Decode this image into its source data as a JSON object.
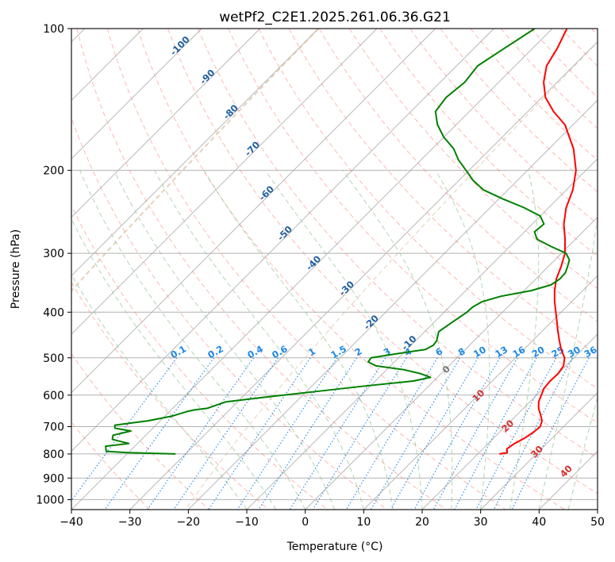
{
  "chart_data": {
    "type": "skew-t",
    "title": "wetPf2_C2E1.2025.261.06.36.G21",
    "xlabel": "Temperature (°C)",
    "ylabel": "Pressure (hPa)",
    "xlim": [
      -40,
      50
    ],
    "ylim": [
      1050,
      100
    ],
    "y_scale": "log",
    "grid": true,
    "x_ticks": [
      -40,
      -30,
      -20,
      -10,
      0,
      10,
      20,
      30,
      40,
      50
    ],
    "x_tick_labels": [
      "−40",
      "−30",
      "−20",
      "−10",
      "0",
      "10",
      "20",
      "30",
      "40",
      "50"
    ],
    "y_ticks": [
      100,
      200,
      300,
      400,
      500,
      600,
      700,
      800,
      900,
      1000
    ],
    "y_tick_labels": [
      "100",
      "200",
      "300",
      "400",
      "500",
      "600",
      "700",
      "800",
      "900",
      "1000"
    ],
    "series": [
      {
        "color": "#ff0000",
        "points": [
          [
            800,
            23.7
          ],
          [
            795,
            24.8
          ],
          [
            780,
            24.1
          ],
          [
            760,
            24.5
          ],
          [
            740,
            25.3
          ],
          [
            720,
            25.8
          ],
          [
            700,
            26.0
          ],
          [
            680,
            25.3
          ],
          [
            660,
            24.0
          ],
          [
            640,
            22.6
          ],
          [
            620,
            21.5
          ],
          [
            600,
            20.8
          ],
          [
            580,
            20.1
          ],
          [
            560,
            19.9
          ],
          [
            540,
            20.0
          ],
          [
            520,
            19.6
          ],
          [
            500,
            18.4
          ],
          [
            480,
            16.4
          ],
          [
            460,
            14.6
          ],
          [
            440,
            12.8
          ],
          [
            420,
            11.0
          ],
          [
            400,
            9.1
          ],
          [
            380,
            7.1
          ],
          [
            360,
            5.2
          ],
          [
            340,
            3.5
          ],
          [
            320,
            2.2
          ],
          [
            300,
            0.6
          ],
          [
            280,
            -1.8
          ],
          [
            260,
            -4.6
          ],
          [
            240,
            -7.0
          ],
          [
            220,
            -8.9
          ],
          [
            200,
            -11.7
          ],
          [
            180,
            -15.8
          ],
          [
            160,
            -21.4
          ],
          [
            150,
            -25.6
          ],
          [
            140,
            -29.4
          ],
          [
            130,
            -32.3
          ],
          [
            120,
            -34.6
          ],
          [
            110,
            -35.8
          ],
          [
            100,
            -37.5
          ]
        ]
      },
      {
        "color": "#008000",
        "points": [
          [
            800,
            -31.7
          ],
          [
            795,
            -40.0
          ],
          [
            790,
            -44.0
          ],
          [
            780,
            -44.5
          ],
          [
            770,
            -45.0
          ],
          [
            760,
            -41.5
          ],
          [
            745,
            -45.0
          ],
          [
            730,
            -45.6
          ],
          [
            715,
            -43.3
          ],
          [
            705,
            -46.5
          ],
          [
            695,
            -47.0
          ],
          [
            680,
            -42.0
          ],
          [
            665,
            -38.8
          ],
          [
            650,
            -37.0
          ],
          [
            645,
            -36.0
          ],
          [
            640,
            -34.1
          ],
          [
            620,
            -32.0
          ],
          [
            605,
            -25.6
          ],
          [
            590,
            -18.6
          ],
          [
            575,
            -11.5
          ],
          [
            560,
            -3.5
          ],
          [
            550,
            -1.2
          ],
          [
            540,
            -3.6
          ],
          [
            530,
            -7.0
          ],
          [
            520,
            -12.5
          ],
          [
            510,
            -14.5
          ],
          [
            500,
            -14.7
          ],
          [
            490,
            -11.0
          ],
          [
            480,
            -6.8
          ],
          [
            470,
            -6.2
          ],
          [
            460,
            -6.4
          ],
          [
            440,
            -7.6
          ],
          [
            420,
            -6.9
          ],
          [
            400,
            -6.1
          ],
          [
            390,
            -6.0
          ],
          [
            380,
            -5.3
          ],
          [
            370,
            -3.0
          ],
          [
            360,
            1.2
          ],
          [
            350,
            3.6
          ],
          [
            340,
            4.1
          ],
          [
            330,
            4.0
          ],
          [
            320,
            3.3
          ],
          [
            310,
            2.5
          ],
          [
            300,
            0.8
          ],
          [
            290,
            -3.0
          ],
          [
            280,
            -6.6
          ],
          [
            270,
            -8.3
          ],
          [
            260,
            -8.0
          ],
          [
            250,
            -10.0
          ],
          [
            240,
            -14.2
          ],
          [
            230,
            -19.3
          ],
          [
            220,
            -24.2
          ],
          [
            210,
            -27.6
          ],
          [
            200,
            -30.5
          ],
          [
            190,
            -33.6
          ],
          [
            180,
            -36.3
          ],
          [
            170,
            -40.0
          ],
          [
            160,
            -43.2
          ],
          [
            150,
            -45.8
          ],
          [
            140,
            -46.4
          ],
          [
            130,
            -45.8
          ],
          [
            120,
            -46.4
          ],
          [
            110,
            -44.8
          ],
          [
            100,
            -43.0
          ]
        ]
      }
    ],
    "annotations": {
      "dry_adiabat_labels": [
        "-100",
        "-90",
        "-80",
        "-70",
        "-60",
        "-50",
        "-40",
        "-30",
        "-20",
        "-10"
      ],
      "moist_adiabat_labels": [
        "0",
        "10",
        "20",
        "30",
        "40"
      ],
      "mixing_ratio_labels": [
        "0.1",
        "0.2",
        "0.4",
        "0.6",
        "1",
        "1.5",
        "2",
        "3",
        "4",
        "6",
        "8",
        "10",
        "13",
        "16",
        "20",
        "25",
        "30",
        "36"
      ]
    },
    "colors": {
      "temperature": "#ff0000",
      "dewpoint": "#008000",
      "dry_adiabat": "#fa8072",
      "moist_adiabat": "#90c490",
      "mixing_ratio": "#1e88e5",
      "dry_adiabat_label": "#1f5f9f",
      "moist_adiabat_label": "#d32f2f",
      "isotherm": "#b0b0b0",
      "lcl_curve": "#d2b48c"
    }
  }
}
